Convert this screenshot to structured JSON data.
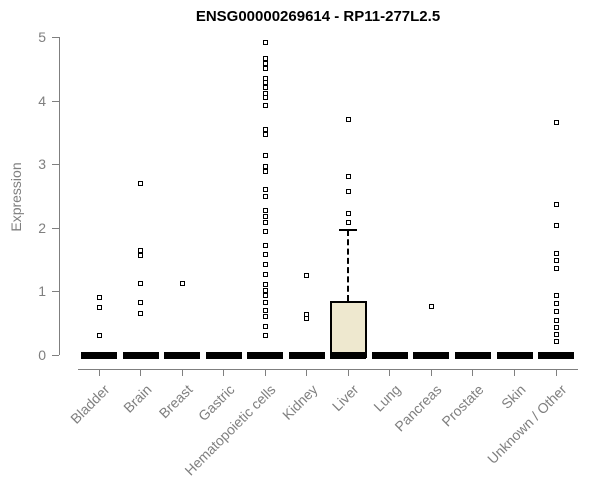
{
  "chart_data": {
    "type": "boxplot",
    "title": "ENSG00000269614 - RP11-277L2.5",
    "ylabel": "Expression",
    "xlabel": "",
    "ylim": [
      0,
      5
    ],
    "yticks": [
      0,
      1,
      2,
      3,
      4,
      5
    ],
    "grid": false,
    "legend": "none",
    "box_fill_color": "#EEE8CF",
    "box_line_color": "#000000",
    "axis_color": "#7f7f7f",
    "outlier_marker": "open-square",
    "categories": [
      "Bladder",
      "Brain",
      "Breast",
      "Gastric",
      "Hematopoietic cells",
      "Kidney",
      "Liver",
      "Lung",
      "Pancreas",
      "Prostate",
      "Skin",
      "Unknown / Other"
    ],
    "series": [
      {
        "category": "Bladder",
        "median": 0,
        "q1": 0,
        "q3": 0,
        "whisker_low": 0,
        "whisker_high": 0,
        "outliers": [
          0.9,
          0.74,
          0.31
        ]
      },
      {
        "category": "Brain",
        "median": 0,
        "q1": 0,
        "q3": 0,
        "whisker_low": 0,
        "whisker_high": 0,
        "outliers": [
          2.7,
          1.65,
          1.56,
          1.13,
          0.82,
          0.66
        ]
      },
      {
        "category": "Breast",
        "median": 0,
        "q1": 0,
        "q3": 0,
        "whisker_low": 0,
        "whisker_high": 0,
        "outliers": [
          1.13
        ]
      },
      {
        "category": "Gastric",
        "median": 0,
        "q1": 0,
        "q3": 0,
        "whisker_low": 0,
        "whisker_high": 0,
        "outliers": []
      },
      {
        "category": "Hematopoietic cells",
        "median": 0,
        "q1": 0,
        "q3": 0,
        "whisker_low": 0,
        "whisker_high": 0,
        "outliers": [
          4.92,
          4.67,
          4.58,
          4.5,
          4.35,
          4.28,
          4.2,
          4.12,
          4.05,
          3.92,
          3.55,
          3.47,
          3.14,
          2.97,
          2.88,
          2.6,
          2.5,
          2.28,
          2.18,
          2.08,
          1.95,
          1.72,
          1.58,
          1.42,
          1.26,
          1.11,
          1.02,
          0.93,
          0.82,
          0.7,
          0.6,
          0.45,
          0.3
        ]
      },
      {
        "category": "Kidney",
        "median": 0,
        "q1": 0,
        "q3": 0,
        "whisker_low": 0,
        "whisker_high": 0,
        "outliers": [
          1.25,
          0.63,
          0.57
        ]
      },
      {
        "category": "Liver",
        "median": 0,
        "q1": 0,
        "q3": 0.85,
        "whisker_low": 0,
        "whisker_high": 1.97,
        "outliers": [
          3.7,
          2.8,
          2.57,
          2.23,
          2.09
        ]
      },
      {
        "category": "Lung",
        "median": 0,
        "q1": 0,
        "q3": 0,
        "whisker_low": 0,
        "whisker_high": 0,
        "outliers": []
      },
      {
        "category": "Pancreas",
        "median": 0,
        "q1": 0,
        "q3": 0,
        "whisker_low": 0,
        "whisker_high": 0,
        "outliers": [
          0.76
        ]
      },
      {
        "category": "Prostate",
        "median": 0,
        "q1": 0,
        "q3": 0,
        "whisker_low": 0,
        "whisker_high": 0,
        "outliers": []
      },
      {
        "category": "Skin",
        "median": 0,
        "q1": 0,
        "q3": 0,
        "whisker_low": 0,
        "whisker_high": 0,
        "outliers": []
      },
      {
        "category": "Unknown / Other",
        "median": 0,
        "q1": 0,
        "q3": 0,
        "whisker_low": 0,
        "whisker_high": 0,
        "outliers": [
          3.65,
          2.36,
          2.04,
          1.6,
          1.48,
          1.36,
          0.93,
          0.81,
          0.68,
          0.54,
          0.43,
          0.32,
          0.22
        ]
      }
    ]
  }
}
